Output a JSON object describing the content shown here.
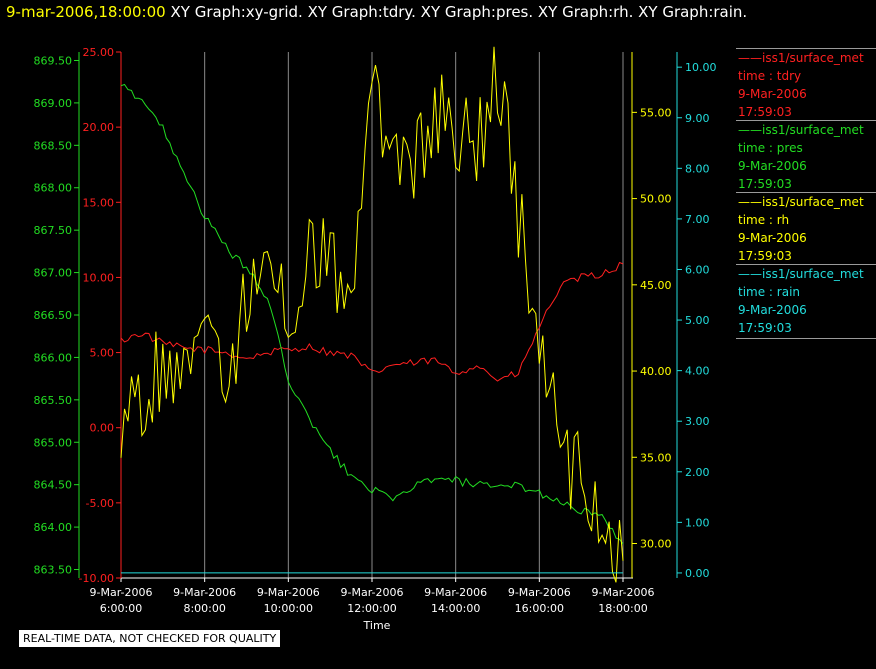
{
  "header": {
    "datetime": "9-mar-2006,18:00:00",
    "titles": "XY Graph:xy-grid.  XY Graph:tdry.  XY Graph:pres.  XY Graph:rh.  XY Graph:rain."
  },
  "footer_note": "REAL-TIME DATA, NOT CHECKED FOR QUALITY",
  "legend": [
    {
      "line": "iss1/surface_met",
      "field": "time : tdry",
      "date": "9-Mar-2006",
      "time": "17:59:03",
      "color": "#ff2020"
    },
    {
      "line": "iss1/surface_met",
      "field": "time : pres",
      "date": "9-Mar-2006",
      "time": "17:59:03",
      "color": "#22dd22"
    },
    {
      "line": "iss1/surface_met",
      "field": "time : rh",
      "date": "9-Mar-2006",
      "time": "17:59:03",
      "color": "#ffff00"
    },
    {
      "line": "iss1/surface_met",
      "field": "time : rain",
      "date": "9-Mar-2006",
      "time": "17:59:03",
      "color": "#22dddd"
    }
  ],
  "chart_data": {
    "type": "line",
    "xlabel": "Time",
    "xlim": [
      "06:00",
      "18:00"
    ],
    "x_ticks": [
      {
        "date": "9-Mar-2006",
        "time": "6:00:00"
      },
      {
        "date": "9-Mar-2006",
        "time": "8:00:00"
      },
      {
        "date": "9-Mar-2006",
        "time": "10:00:00"
      },
      {
        "date": "9-Mar-2006",
        "time": "12:00:00"
      },
      {
        "date": "9-Mar-2006",
        "time": "14:00:00"
      },
      {
        "date": "9-Mar-2006",
        "time": "16:00:00"
      },
      {
        "date": "9-Mar-2006",
        "time": "18:00:00"
      }
    ],
    "grid": "vertical",
    "axes": [
      {
        "id": "pres",
        "color": "#22dd22",
        "ylim": [
          863.4,
          869.6
        ],
        "ticks": [
          "869.50",
          "869.00",
          "868.50",
          "868.00",
          "867.50",
          "867.00",
          "866.50",
          "866.00",
          "865.50",
          "865.00",
          "864.50",
          "864.00",
          "863.50"
        ]
      },
      {
        "id": "tdry",
        "color": "#ff2020",
        "ylim": [
          -10,
          25
        ],
        "ticks": [
          "25.00",
          "20.00",
          "15.00",
          "10.00",
          "5.00",
          "0.00",
          "-5.00",
          "-10.00"
        ]
      },
      {
        "id": "rh",
        "color": "#ffff00",
        "ylim": [
          28.0,
          58.5
        ],
        "ticks": [
          "55.00",
          "50.00",
          "45.00",
          "40.00",
          "35.00",
          "30.00"
        ]
      },
      {
        "id": "rain",
        "color": "#22dddd",
        "ylim": [
          -0.1,
          10.3
        ],
        "ticks": [
          "10.00",
          "9.00",
          "8.00",
          "7.00",
          "6.00",
          "5.00",
          "4.00",
          "3.00",
          "2.00",
          "1.00",
          "0.00"
        ]
      }
    ],
    "x": [
      "06:00",
      "06:30",
      "07:00",
      "07:30",
      "08:00",
      "08:30",
      "09:00",
      "09:30",
      "10:00",
      "10:30",
      "11:00",
      "11:30",
      "12:00",
      "12:30",
      "13:00",
      "13:30",
      "14:00",
      "14:30",
      "15:00",
      "15:30",
      "16:00",
      "16:30",
      "17:00",
      "17:30",
      "18:00"
    ],
    "series": [
      {
        "name": "tdry",
        "axis": "tdry",
        "color": "#ff2020",
        "values": [
          5.8,
          6.3,
          5.6,
          5.3,
          5.2,
          5.0,
          4.6,
          5.0,
          5.2,
          5.4,
          5.0,
          4.8,
          3.6,
          4.2,
          4.3,
          4.5,
          3.6,
          4.2,
          3.2,
          3.6,
          6.7,
          9.4,
          10.0,
          10.2,
          10.9
        ]
      },
      {
        "name": "pres",
        "axis": "pres",
        "color": "#22dd22",
        "values": [
          869.2,
          869.05,
          868.7,
          868.2,
          867.65,
          867.3,
          867.05,
          866.7,
          865.75,
          865.25,
          864.9,
          864.6,
          864.45,
          864.3,
          864.5,
          864.55,
          864.55,
          864.5,
          864.45,
          864.5,
          864.4,
          864.3,
          864.2,
          864.1,
          863.8
        ]
      },
      {
        "name": "rh",
        "axis": "rh",
        "color": "#ffff00",
        "values": [
          36.5,
          38.5,
          40.5,
          39.0,
          42.0,
          39.5,
          44.0,
          45.5,
          43.0,
          47.0,
          46.0,
          45.0,
          57.0,
          51.0,
          52.0,
          55.0,
          54.0,
          53.0,
          57.0,
          49.0,
          42.0,
          35.0,
          34.0,
          31.0,
          29.0
        ]
      },
      {
        "name": "rain",
        "axis": "rain",
        "color": "#22dddd",
        "values": [
          0.0,
          0.0,
          0.0,
          0.0,
          0.0,
          0.0,
          0.0,
          0.0,
          0.0,
          0.0,
          0.0,
          0.0,
          0.0,
          0.0,
          0.0,
          0.0,
          0.0,
          0.0,
          0.0,
          0.0,
          0.0,
          0.0,
          0.0,
          0.0,
          0.0
        ]
      }
    ]
  }
}
